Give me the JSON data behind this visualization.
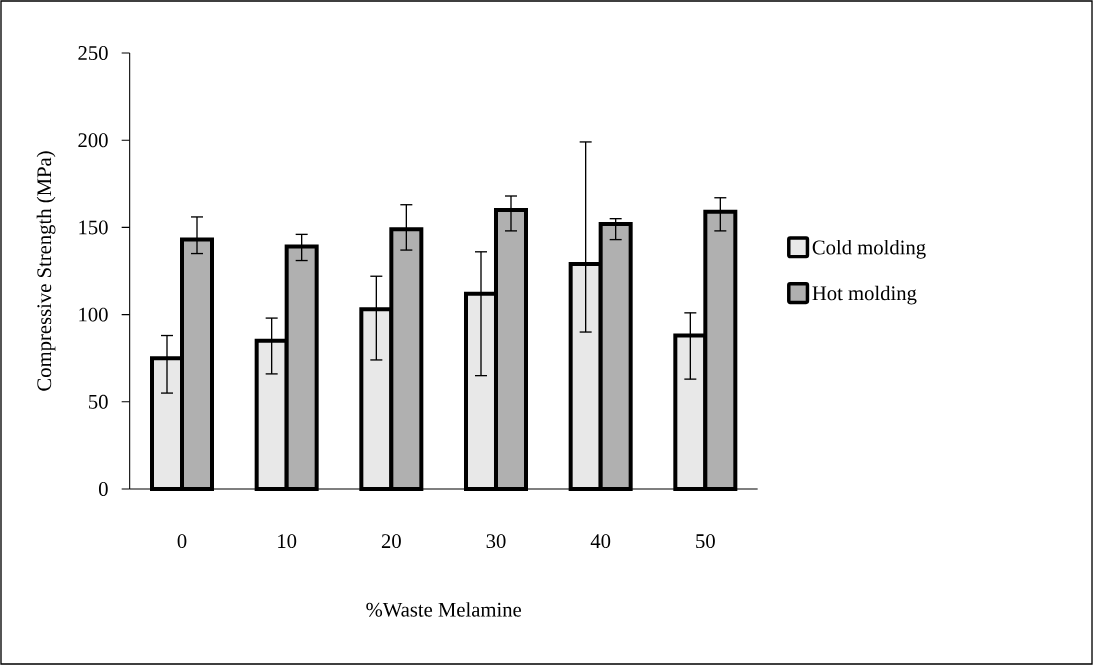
{
  "chart_data": {
    "type": "bar",
    "xlabel": "%Waste Melamine",
    "ylabel": "Compressive Strength (MPa)",
    "categories": [
      "0",
      "10",
      "20",
      "30",
      "40",
      "50"
    ],
    "ylim": [
      0,
      250
    ],
    "yticks": [
      0,
      50,
      100,
      150,
      200,
      250
    ],
    "grid": false,
    "legend": "right",
    "series": [
      {
        "name": "Cold molding",
        "color": "#e8e8e8",
        "values": [
          75,
          85,
          103,
          112,
          129,
          88
        ],
        "errors": [
          [
            55,
            88
          ],
          [
            66,
            98
          ],
          [
            74,
            122
          ],
          [
            65,
            136
          ],
          [
            90,
            199
          ],
          [
            63,
            101
          ]
        ]
      },
      {
        "name": "Hot molding",
        "color": "#b0b0b0",
        "values": [
          143,
          139,
          149,
          160,
          152,
          159
        ],
        "errors": [
          [
            135,
            156
          ],
          [
            131,
            146
          ],
          [
            137,
            163
          ],
          [
            148,
            168
          ],
          [
            143,
            155
          ],
          [
            148,
            167
          ]
        ]
      }
    ]
  }
}
